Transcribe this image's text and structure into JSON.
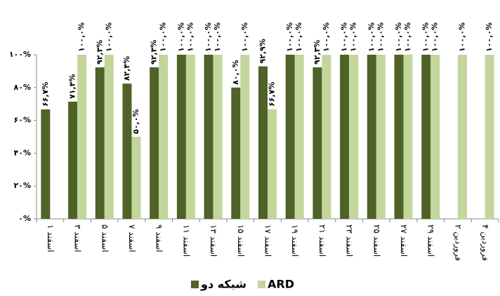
{
  "chart_data": {
    "type": "bar",
    "categories": [
      "۱ اسفند",
      "۳ اسفند",
      "۵ اسفند",
      "۷ اسفند",
      "۹ اسفند",
      "۱۱ اسفند",
      "۱۳ اسفند",
      "۱۵ اسفند",
      "۱۷ اسفند",
      "۱۹ اسفند",
      "۲۱ اسفند",
      "۲۳ اسفند",
      "۲۵ اسفند",
      "۲۷ اسفند",
      "۲۹ اسفند",
      "۲ فروردین",
      "۴ فروردین"
    ],
    "series": [
      {
        "name": "شبکه دو",
        "color": "#4f6228",
        "values": [
          66.7,
          71.4,
          92.3,
          82.4,
          92.3,
          100,
          100,
          80,
          92.9,
          100,
          92.3,
          100,
          100,
          100,
          100,
          null,
          null
        ],
        "value_labels": [
          "۶۶,۷%",
          "۷۱,۴%",
          "۹۲,۳%",
          "۸۲,۴%",
          "۹۲,۳%",
          "۱۰۰,۰%",
          "۱۰۰,۰%",
          "۸۰,۰%",
          "۹۲,۹%",
          "۱۰۰,۰%",
          "۹۲,۳%",
          "۱۰۰,۰%",
          "۱۰۰,۰%",
          "۱۰۰,۰%",
          "۱۰۰,۰%",
          null,
          null
        ]
      },
      {
        "name": "ARD",
        "color": "#c3d69b",
        "values": [
          null,
          100,
          100,
          50,
          100,
          100,
          100,
          100,
          66.7,
          100,
          100,
          100,
          100,
          100,
          100,
          100,
          100
        ],
        "value_labels": [
          null,
          "۱۰۰,۰%",
          "۱۰۰,۰%",
          "۵۰,۰%",
          "۱۰۰,۰%",
          "۱۰۰,۰%",
          "۱۰۰,۰%",
          "۱۰۰,۰%",
          "۶۶,۷%",
          "۱۰۰,۰%",
          "۱۰۰,۰%",
          "۱۰۰,۰%",
          "۱۰۰,۰%",
          "۱۰۰,۰%",
          "۱۰۰,۰%",
          "۱۰۰,۰%",
          "۱۰۰,۰%"
        ]
      }
    ],
    "ylim": [
      0,
      100
    ],
    "yticks": [
      {
        "value": 0,
        "label": "۰%"
      },
      {
        "value": 20,
        "label": "۲۰%"
      },
      {
        "value": 40,
        "label": "۴۰%"
      },
      {
        "value": 60,
        "label": "۶۰%"
      },
      {
        "value": 80,
        "label": "۸۰%"
      },
      {
        "value": 100,
        "label": "۱۰۰%"
      }
    ],
    "legend": "bottom"
  }
}
